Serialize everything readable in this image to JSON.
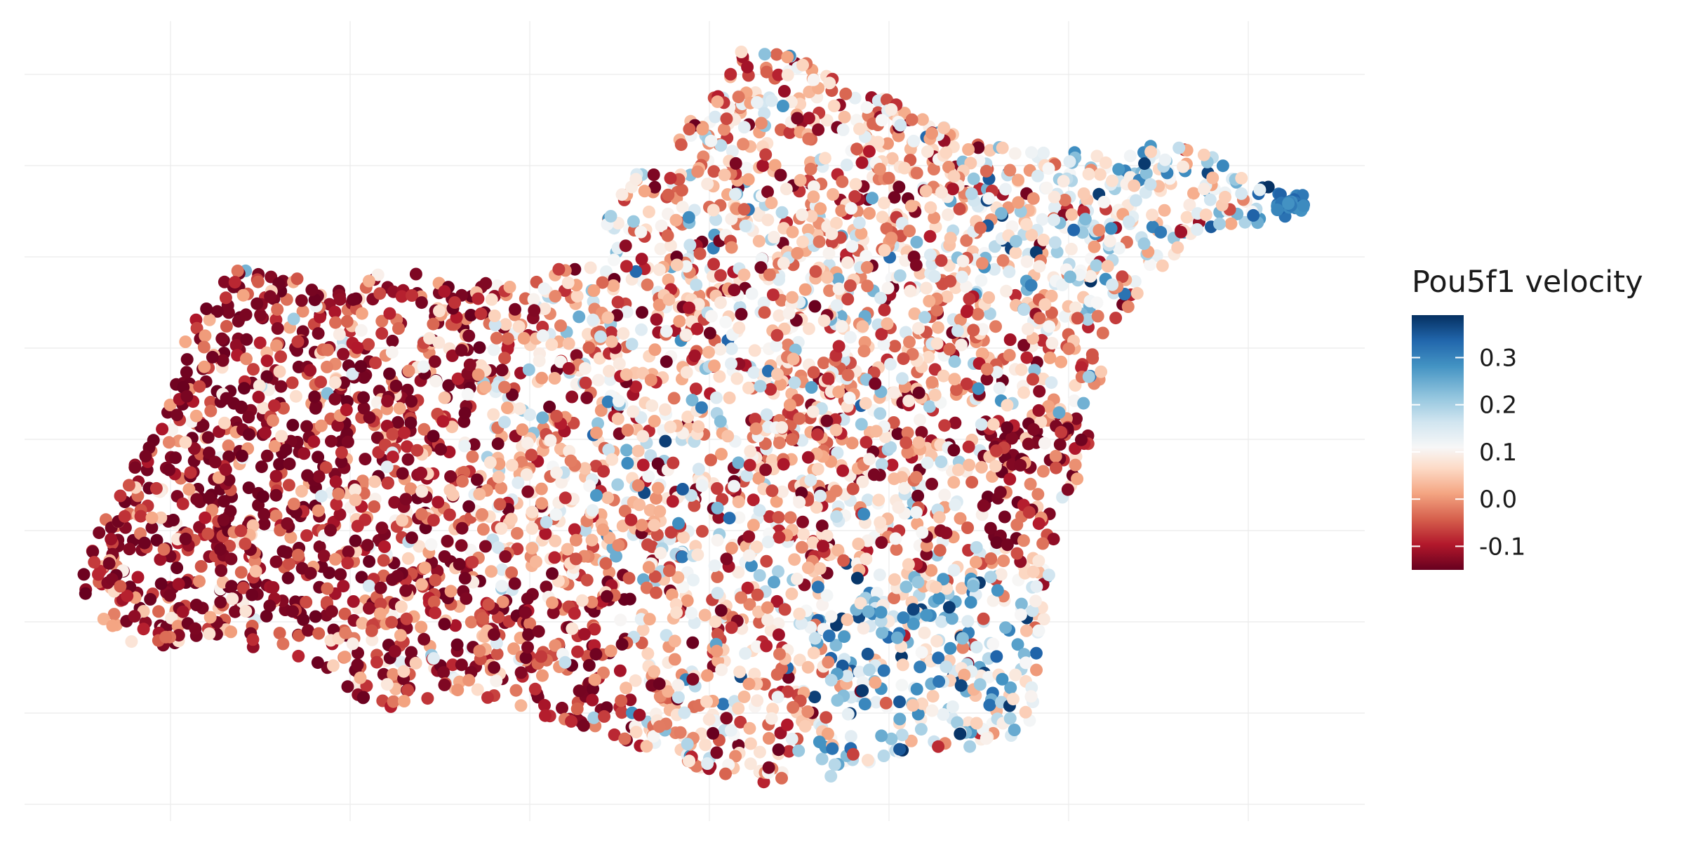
{
  "chart_data": {
    "type": "scatter",
    "title": "",
    "xlabel": "",
    "ylabel": "",
    "grid": true,
    "axis_tick_labels_shown": false,
    "point_count_approx": 4200,
    "legend": {
      "title": "Pou5f1 velocity",
      "placement": "right",
      "type": "continuous-colorbar",
      "ticks": [
        -0.1,
        0.0,
        0.1,
        0.2,
        0.3
      ],
      "tick_labels": [
        "-0.1",
        "0.0",
        "0.1",
        "0.2",
        "0.3"
      ],
      "range": [
        -0.15,
        0.39
      ]
    },
    "color_scale": {
      "name": "RdBu (diverging)",
      "stops": [
        "#67001f",
        "#b2182b",
        "#d6604d",
        "#f4a582",
        "#fddbc7",
        "#f7f7f7",
        "#d1e5f0",
        "#92c5de",
        "#4393c3",
        "#2166ac",
        "#053061"
      ]
    },
    "regions": [
      {
        "name": "left lobe",
        "value_tendency": "mostly negative (red)"
      },
      {
        "name": "upper-right arm",
        "value_tendency": "mostly positive (blue)"
      },
      {
        "name": "lower-right region",
        "value_tendency": "mostly positive (blue)"
      },
      {
        "name": "central body",
        "value_tendency": "mixed"
      }
    ]
  }
}
